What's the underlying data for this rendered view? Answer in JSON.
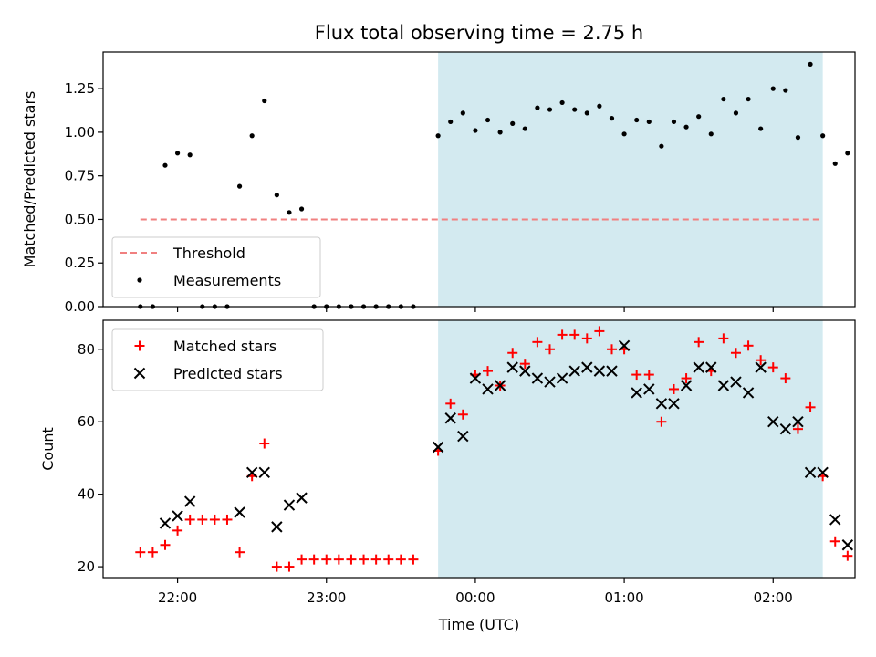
{
  "chart_data": [
    {
      "type": "scatter",
      "title": "Flux total observing time = 2.75 h",
      "ylabel": "Matched/Predicted stars",
      "xlabel": "",
      "ylim": [
        0,
        1.46
      ],
      "yticks": [
        0.0,
        0.25,
        0.5,
        0.75,
        1.0,
        1.25
      ],
      "yticklabels": [
        "0.00",
        "0.25",
        "0.50",
        "0.75",
        "1.00",
        "1.25"
      ],
      "xlim": [
        "2000-01-01T21:30",
        "2000-01-02T02:33"
      ],
      "xticks": [
        "2000-01-01T22:00",
        "2000-01-01T23:00",
        "2000-01-02T00:00",
        "2000-01-02T01:00",
        "2000-01-02T02:00"
      ],
      "shaded_span": [
        "2000-01-01T23:45",
        "2000-01-02T02:20"
      ],
      "threshold": {
        "name": "Threshold",
        "y": 0.5,
        "x_range": [
          "2000-01-01T21:45",
          "2000-01-02T02:20"
        ],
        "color": "#f08080"
      },
      "legend_loc": "lower-left",
      "series": [
        {
          "name": "Measurements",
          "color": "#000000",
          "points": [
            [
              "2000-01-01T21:45",
              0.0
            ],
            [
              "2000-01-01T21:50",
              0.0
            ],
            [
              "2000-01-01T21:55",
              0.81
            ],
            [
              "2000-01-01T22:00",
              0.88
            ],
            [
              "2000-01-01T22:05",
              0.87
            ],
            [
              "2000-01-01T22:10",
              0.0
            ],
            [
              "2000-01-01T22:15",
              0.0
            ],
            [
              "2000-01-01T22:20",
              0.0
            ],
            [
              "2000-01-01T22:25",
              0.69
            ],
            [
              "2000-01-01T22:30",
              0.98
            ],
            [
              "2000-01-01T22:35",
              1.18
            ],
            [
              "2000-01-01T22:40",
              0.64
            ],
            [
              "2000-01-01T22:45",
              0.54
            ],
            [
              "2000-01-01T22:50",
              0.56
            ],
            [
              "2000-01-01T22:55",
              0.0
            ],
            [
              "2000-01-01T23:00",
              0.0
            ],
            [
              "2000-01-01T23:05",
              0.0
            ],
            [
              "2000-01-01T23:10",
              0.0
            ],
            [
              "2000-01-01T23:15",
              0.0
            ],
            [
              "2000-01-01T23:20",
              0.0
            ],
            [
              "2000-01-01T23:25",
              0.0
            ],
            [
              "2000-01-01T23:30",
              0.0
            ],
            [
              "2000-01-01T23:35",
              0.0
            ],
            [
              "2000-01-01T23:45",
              0.98
            ],
            [
              "2000-01-01T23:50",
              1.06
            ],
            [
              "2000-01-01T23:55",
              1.11
            ],
            [
              "2000-01-02T00:00",
              1.01
            ],
            [
              "2000-01-02T00:05",
              1.07
            ],
            [
              "2000-01-02T00:10",
              1.0
            ],
            [
              "2000-01-02T00:15",
              1.05
            ],
            [
              "2000-01-02T00:20",
              1.02
            ],
            [
              "2000-01-02T00:25",
              1.14
            ],
            [
              "2000-01-02T00:30",
              1.13
            ],
            [
              "2000-01-02T00:35",
              1.17
            ],
            [
              "2000-01-02T00:40",
              1.13
            ],
            [
              "2000-01-02T00:45",
              1.11
            ],
            [
              "2000-01-02T00:50",
              1.15
            ],
            [
              "2000-01-02T00:55",
              1.08
            ],
            [
              "2000-01-02T01:00",
              0.99
            ],
            [
              "2000-01-02T01:05",
              1.07
            ],
            [
              "2000-01-02T01:10",
              1.06
            ],
            [
              "2000-01-02T01:15",
              0.92
            ],
            [
              "2000-01-02T01:20",
              1.06
            ],
            [
              "2000-01-02T01:25",
              1.03
            ],
            [
              "2000-01-02T01:30",
              1.09
            ],
            [
              "2000-01-02T01:35",
              0.99
            ],
            [
              "2000-01-02T01:40",
              1.19
            ],
            [
              "2000-01-02T01:45",
              1.11
            ],
            [
              "2000-01-02T01:50",
              1.19
            ],
            [
              "2000-01-02T01:55",
              1.02
            ],
            [
              "2000-01-02T02:00",
              1.25
            ],
            [
              "2000-01-02T02:05",
              1.24
            ],
            [
              "2000-01-02T02:10",
              0.97
            ],
            [
              "2000-01-02T02:15",
              1.39
            ],
            [
              "2000-01-02T02:20",
              0.98
            ],
            [
              "2000-01-02T02:25",
              0.82
            ],
            [
              "2000-01-02T02:30",
              0.88
            ]
          ]
        }
      ]
    },
    {
      "type": "scatter",
      "title": "",
      "ylabel": "Count",
      "xlabel": "Time (UTC)",
      "ylim": [
        17,
        88
      ],
      "yticks": [
        20,
        40,
        60,
        80
      ],
      "yticklabels": [
        "20",
        "40",
        "60",
        "80"
      ],
      "xlim": [
        "2000-01-01T21:30",
        "2000-01-02T02:33"
      ],
      "xticks": [
        "2000-01-01T22:00",
        "2000-01-01T23:00",
        "2000-01-02T00:00",
        "2000-01-02T01:00",
        "2000-01-02T02:00"
      ],
      "xticklabels": [
        "22:00",
        "23:00",
        "00:00",
        "01:00",
        "02:00"
      ],
      "shaded_span": [
        "2000-01-01T23:45",
        "2000-01-02T02:20"
      ],
      "legend_loc": "top-left",
      "series": [
        {
          "name": "Matched stars",
          "marker": "plus",
          "color": "#ff0000",
          "points": [
            [
              "2000-01-01T21:45",
              24
            ],
            [
              "2000-01-01T21:50",
              24
            ],
            [
              "2000-01-01T21:55",
              26
            ],
            [
              "2000-01-01T22:00",
              30
            ],
            [
              "2000-01-01T22:05",
              33
            ],
            [
              "2000-01-01T22:10",
              33
            ],
            [
              "2000-01-01T22:15",
              33
            ],
            [
              "2000-01-01T22:20",
              33
            ],
            [
              "2000-01-01T22:25",
              24
            ],
            [
              "2000-01-01T22:30",
              45
            ],
            [
              "2000-01-01T22:35",
              54
            ],
            [
              "2000-01-01T22:40",
              20
            ],
            [
              "2000-01-01T22:45",
              20
            ],
            [
              "2000-01-01T22:50",
              22
            ],
            [
              "2000-01-01T22:55",
              22
            ],
            [
              "2000-01-01T23:00",
              22
            ],
            [
              "2000-01-01T23:05",
              22
            ],
            [
              "2000-01-01T23:10",
              22
            ],
            [
              "2000-01-01T23:15",
              22
            ],
            [
              "2000-01-01T23:20",
              22
            ],
            [
              "2000-01-01T23:25",
              22
            ],
            [
              "2000-01-01T23:30",
              22
            ],
            [
              "2000-01-01T23:35",
              22
            ],
            [
              "2000-01-01T23:45",
              52
            ],
            [
              "2000-01-01T23:50",
              65
            ],
            [
              "2000-01-01T23:55",
              62
            ],
            [
              "2000-01-02T00:00",
              73
            ],
            [
              "2000-01-02T00:05",
              74
            ],
            [
              "2000-01-02T00:10",
              70
            ],
            [
              "2000-01-02T00:15",
              79
            ],
            [
              "2000-01-02T00:20",
              76
            ],
            [
              "2000-01-02T00:25",
              82
            ],
            [
              "2000-01-02T00:30",
              80
            ],
            [
              "2000-01-02T00:35",
              84
            ],
            [
              "2000-01-02T00:40",
              84
            ],
            [
              "2000-01-02T00:45",
              83
            ],
            [
              "2000-01-02T00:50",
              85
            ],
            [
              "2000-01-02T00:55",
              80
            ],
            [
              "2000-01-02T01:00",
              80
            ],
            [
              "2000-01-02T01:05",
              73
            ],
            [
              "2000-01-02T01:10",
              73
            ],
            [
              "2000-01-02T01:15",
              60
            ],
            [
              "2000-01-02T01:20",
              69
            ],
            [
              "2000-01-02T01:25",
              72
            ],
            [
              "2000-01-02T01:30",
              82
            ],
            [
              "2000-01-02T01:35",
              74
            ],
            [
              "2000-01-02T01:40",
              83
            ],
            [
              "2000-01-02T01:45",
              79
            ],
            [
              "2000-01-02T01:50",
              81
            ],
            [
              "2000-01-02T01:55",
              77
            ],
            [
              "2000-01-02T02:00",
              75
            ],
            [
              "2000-01-02T02:05",
              72
            ],
            [
              "2000-01-02T02:10",
              58
            ],
            [
              "2000-01-02T02:15",
              64
            ],
            [
              "2000-01-02T02:20",
              45
            ],
            [
              "2000-01-02T02:25",
              27
            ],
            [
              "2000-01-02T02:30",
              23
            ]
          ]
        },
        {
          "name": "Predicted stars",
          "marker": "x",
          "color": "#000000",
          "points": [
            [
              "2000-01-01T21:55",
              32
            ],
            [
              "2000-01-01T22:00",
              34
            ],
            [
              "2000-01-01T22:05",
              38
            ],
            [
              "2000-01-01T22:25",
              35
            ],
            [
              "2000-01-01T22:30",
              46
            ],
            [
              "2000-01-01T22:35",
              46
            ],
            [
              "2000-01-01T22:40",
              31
            ],
            [
              "2000-01-01T22:45",
              37
            ],
            [
              "2000-01-01T22:50",
              39
            ],
            [
              "2000-01-01T23:45",
              53
            ],
            [
              "2000-01-01T23:50",
              61
            ],
            [
              "2000-01-01T23:55",
              56
            ],
            [
              "2000-01-02T00:00",
              72
            ],
            [
              "2000-01-02T00:05",
              69
            ],
            [
              "2000-01-02T00:10",
              70
            ],
            [
              "2000-01-02T00:15",
              75
            ],
            [
              "2000-01-02T00:20",
              74
            ],
            [
              "2000-01-02T00:25",
              72
            ],
            [
              "2000-01-02T00:30",
              71
            ],
            [
              "2000-01-02T00:35",
              72
            ],
            [
              "2000-01-02T00:40",
              74
            ],
            [
              "2000-01-02T00:45",
              75
            ],
            [
              "2000-01-02T00:50",
              74
            ],
            [
              "2000-01-02T00:55",
              74
            ],
            [
              "2000-01-02T01:00",
              81
            ],
            [
              "2000-01-02T01:05",
              68
            ],
            [
              "2000-01-02T01:10",
              69
            ],
            [
              "2000-01-02T01:15",
              65
            ],
            [
              "2000-01-02T01:20",
              65
            ],
            [
              "2000-01-02T01:25",
              70
            ],
            [
              "2000-01-02T01:30",
              75
            ],
            [
              "2000-01-02T01:35",
              75
            ],
            [
              "2000-01-02T01:40",
              70
            ],
            [
              "2000-01-02T01:45",
              71
            ],
            [
              "2000-01-02T01:50",
              68
            ],
            [
              "2000-01-02T01:55",
              75
            ],
            [
              "2000-01-02T02:00",
              60
            ],
            [
              "2000-01-02T02:05",
              58
            ],
            [
              "2000-01-02T02:10",
              60
            ],
            [
              "2000-01-02T02:15",
              46
            ],
            [
              "2000-01-02T02:20",
              46
            ],
            [
              "2000-01-02T02:25",
              33
            ],
            [
              "2000-01-02T02:30",
              26
            ]
          ]
        }
      ]
    }
  ],
  "colors": {
    "shade": "#d3eaf0",
    "threshold": "#f08080",
    "matched": "#ff0000",
    "predicted": "#000000"
  }
}
